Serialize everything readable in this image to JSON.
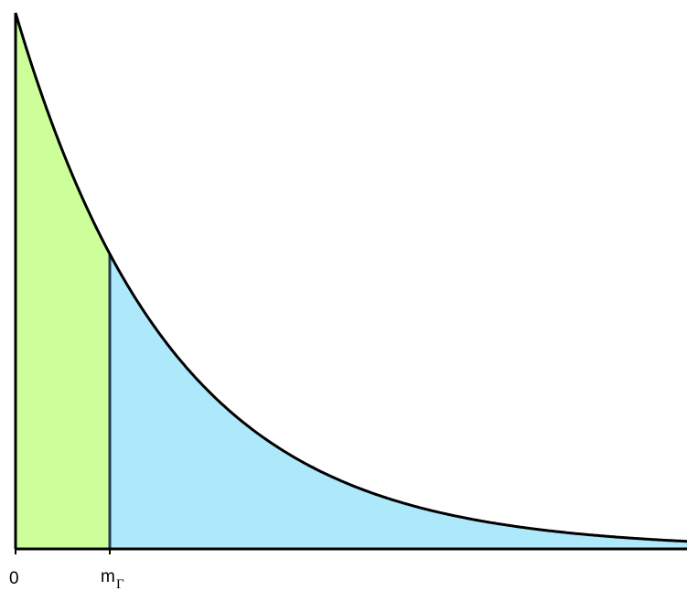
{
  "diagram": {
    "curve": "exponential-decay",
    "regions": [
      {
        "name": "left-region",
        "from": "0",
        "to": "m_Gamma",
        "color": "#ccff99"
      },
      {
        "name": "right-region",
        "from": "m_Gamma",
        "to": "infinity",
        "color": "#aee8fb"
      }
    ],
    "colors": {
      "curve": "#000000",
      "divider": "#1f3d57",
      "axis": "#000000"
    },
    "labels": {
      "origin": "0",
      "threshold_main": "m",
      "threshold_sub": "Γ"
    }
  }
}
